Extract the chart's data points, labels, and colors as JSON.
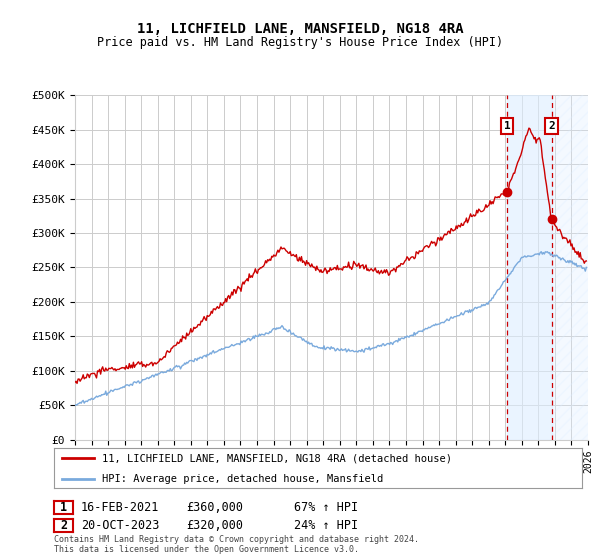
{
  "title": "11, LICHFIELD LANE, MANSFIELD, NG18 4RA",
  "subtitle": "Price paid vs. HM Land Registry's House Price Index (HPI)",
  "ylabel_ticks": [
    "£0",
    "£50K",
    "£100K",
    "£150K",
    "£200K",
    "£250K",
    "£300K",
    "£350K",
    "£400K",
    "£450K",
    "£500K"
  ],
  "ytick_values": [
    0,
    50000,
    100000,
    150000,
    200000,
    250000,
    300000,
    350000,
    400000,
    450000,
    500000
  ],
  "ylim": [
    0,
    500000
  ],
  "xlim_start": 1995,
  "xlim_end": 2026,
  "t1_x": 2021.12,
  "t1_y": 360000,
  "t2_x": 2023.8,
  "t2_y": 320000,
  "legend_line1": "11, LICHFIELD LANE, MANSFIELD, NG18 4RA (detached house)",
  "legend_line2": "HPI: Average price, detached house, Mansfield",
  "annotation1": [
    "1",
    "16-FEB-2021",
    "£360,000",
    "67% ↑ HPI"
  ],
  "annotation2": [
    "2",
    "20-OCT-2023",
    "£320,000",
    "24% ↑ HPI"
  ],
  "footer": "Contains HM Land Registry data © Crown copyright and database right 2024.\nThis data is licensed under the Open Government Licence v3.0.",
  "hpi_color": "#7aaadd",
  "price_color": "#cc0000",
  "vline_color": "#cc0000",
  "grid_color": "#cccccc",
  "bg_color": "#ffffff"
}
